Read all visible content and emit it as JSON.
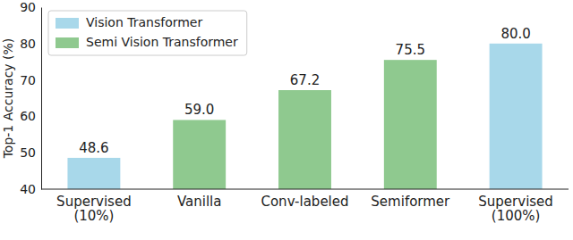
{
  "chart_data": {
    "type": "bar",
    "y_label": "Top-1 Accuracy (%)",
    "categories": [
      "Supervised\n(10%)",
      "Vanilla",
      "Conv-labeled",
      "Semiformer",
      "Supervised\n(100%)"
    ],
    "series": [
      {
        "name": "Vision Transformer",
        "color": "#a8d8ea",
        "values": [
          48.6,
          null,
          null,
          null,
          80.0
        ],
        "value_labels": [
          "48.6",
          null,
          null,
          null,
          "80.0"
        ]
      },
      {
        "name": "Semi Vision Transformer",
        "color": "#8fc98f",
        "values": [
          null,
          59.0,
          67.2,
          75.5,
          null
        ],
        "value_labels": [
          null,
          "59.0",
          "67.2",
          "75.5",
          null
        ]
      }
    ],
    "ylim": [
      40,
      90
    ],
    "yticks": [
      40,
      50,
      60,
      70,
      80,
      90
    ],
    "legend": "upper-left",
    "data_labels": true,
    "grid": false
  }
}
